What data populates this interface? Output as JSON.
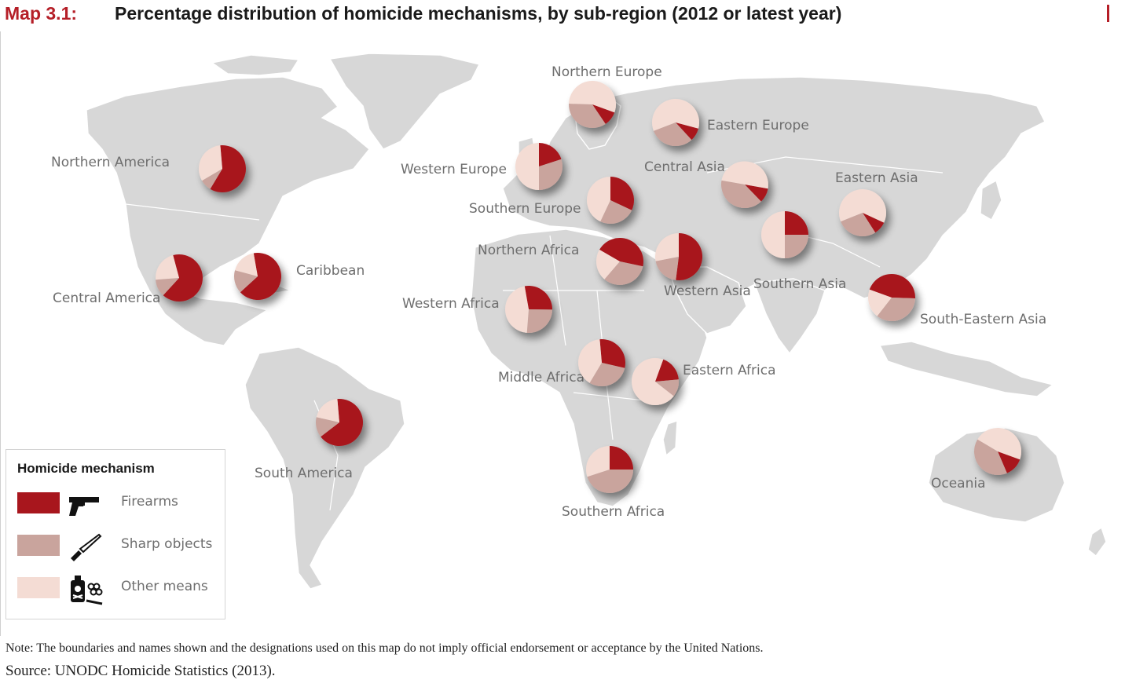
{
  "header": {
    "map_id": "Map 3.1:",
    "title": "Percentage distribution of homicide mechanisms, by sub-region (2012 or latest year)"
  },
  "colors": {
    "firearms": "#a8161d",
    "sharp": "#c9a49d",
    "other": "#f4dcd4",
    "land": "#d7d7d7",
    "label": "#6e6e6e",
    "accent": "#b51e27"
  },
  "map": {
    "regions": [
      {
        "name": "Northern America",
        "firearms": 0.6,
        "sharp": 0.08,
        "other": 0.32
      },
      {
        "name": "Central America",
        "firearms": 0.66,
        "sharp": 0.12,
        "other": 0.22
      },
      {
        "name": "Caribbean",
        "firearms": 0.66,
        "sharp": 0.16,
        "other": 0.18
      },
      {
        "name": "South America",
        "firearms": 0.66,
        "sharp": 0.14,
        "other": 0.2
      },
      {
        "name": "Northern Europe",
        "firearms": 0.1,
        "sharp": 0.35,
        "other": 0.55
      },
      {
        "name": "Western Europe",
        "firearms": 0.2,
        "sharp": 0.3,
        "other": 0.5
      },
      {
        "name": "Southern Europe",
        "firearms": 0.32,
        "sharp": 0.25,
        "other": 0.43
      },
      {
        "name": "Eastern Europe",
        "firearms": 0.09,
        "sharp": 0.31,
        "other": 0.6
      },
      {
        "name": "Northern Africa",
        "firearms": 0.45,
        "sharp": 0.33,
        "other": 0.22
      },
      {
        "name": "Western Africa",
        "firearms": 0.28,
        "sharp": 0.26,
        "other": 0.46
      },
      {
        "name": "Middle Africa",
        "firearms": 0.3,
        "sharp": 0.3,
        "other": 0.4
      },
      {
        "name": "Eastern Africa",
        "firearms": 0.18,
        "sharp": 0.12,
        "other": 0.7
      },
      {
        "name": "Southern Africa",
        "firearms": 0.25,
        "sharp": 0.45,
        "other": 0.3
      },
      {
        "name": "Central Asia",
        "firearms": 0.1,
        "sharp": 0.4,
        "other": 0.5
      },
      {
        "name": "Western Asia",
        "firearms": 0.52,
        "sharp": 0.2,
        "other": 0.28
      },
      {
        "name": "Southern Asia",
        "firearms": 0.25,
        "sharp": 0.25,
        "other": 0.5
      },
      {
        "name": "Eastern Asia",
        "firearms": 0.09,
        "sharp": 0.28,
        "other": 0.63
      },
      {
        "name": "South-Eastern Asia",
        "firearms": 0.45,
        "sharp": 0.35,
        "other": 0.2
      },
      {
        "name": "Oceania",
        "firearms": 0.13,
        "sharp": 0.4,
        "other": 0.47
      }
    ]
  },
  "legend": {
    "title": "Homicide mechanism",
    "items": [
      {
        "label": "Firearms",
        "icon": "gun-icon"
      },
      {
        "label": "Sharp objects",
        "icon": "knife-icon"
      },
      {
        "label": "Other means",
        "icon": "poison-bottle-and-knuckles-icon"
      }
    ]
  },
  "footer": {
    "note": "Note: The boundaries and names shown and the designations used on this map do not imply official endorsement or acceptance by the United Nations.",
    "source": "Source: UNODC Homicide Statistics (2013)."
  }
}
